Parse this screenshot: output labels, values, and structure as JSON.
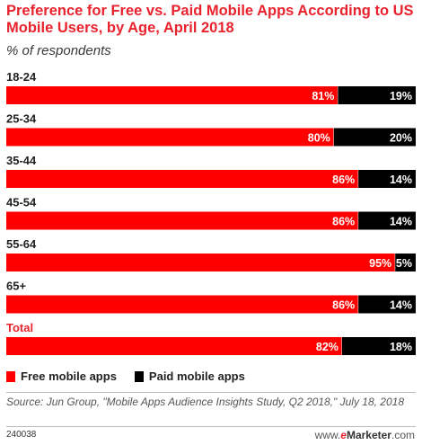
{
  "title": "Preference for Free vs. Paid Mobile Apps According to US Mobile Users, by Age, April 2018",
  "subtitle": "% of respondents",
  "colors": {
    "free": "#ff0000",
    "paid": "#000000",
    "total_label": "#e8232d"
  },
  "chart_data": {
    "type": "bar",
    "orientation": "horizontal",
    "stacked": true,
    "categories": [
      "18-24",
      "25-34",
      "35-44",
      "45-54",
      "55-64",
      "65+",
      "Total"
    ],
    "series": [
      {
        "name": "Free mobile apps",
        "values": [
          81,
          80,
          86,
          86,
          95,
          86,
          82
        ]
      },
      {
        "name": "Paid mobile apps",
        "values": [
          19,
          20,
          14,
          14,
          5,
          14,
          18
        ]
      }
    ],
    "value_suffix": "%",
    "xlim": [
      0,
      100
    ],
    "legend_position": "bottom-left",
    "grid": false
  },
  "legend": [
    {
      "label": "Free mobile apps",
      "color": "#ff0000"
    },
    {
      "label": "Paid mobile apps",
      "color": "#000000"
    }
  ],
  "source": "Source: Jun Group, \"Mobile Apps Audience Insights Study, Q2 2018,\" July 18, 2018",
  "footer_id": "240038",
  "brand": {
    "prefix": "www.",
    "e": "e",
    "rest": "Marketer",
    "suffix": ".com"
  }
}
